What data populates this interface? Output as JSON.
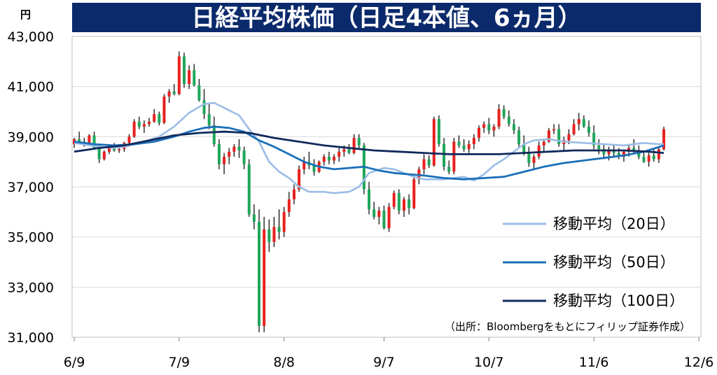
{
  "title": "日経平均株価（日足4本値、6ヵ月）",
  "unit": "円",
  "source": "（出所：Bloombergをもとにフィリップ証券作成）",
  "colors": {
    "title_bg": "#0b2a6b",
    "up": "#e8211e",
    "down": "#1fa65b",
    "ma20": "#9bbde6",
    "ma50": "#1b6fb8",
    "ma100": "#102a5c",
    "grid": "#d9d9d9"
  },
  "chart_data": {
    "type": "candlestick",
    "ylim": [
      31000,
      43000
    ],
    "yticks": [
      31000,
      33000,
      35000,
      37000,
      39000,
      41000,
      43000
    ],
    "ytick_labels": [
      "31,000",
      "33,000",
      "35,000",
      "37,000",
      "39,000",
      "41,000",
      "43,000"
    ],
    "xlim": [
      0,
      125
    ],
    "x_ticks": [
      {
        "label": "6/9",
        "i": 0
      },
      {
        "label": "7/9",
        "i": 21
      },
      {
        "label": "8/8",
        "i": 42
      },
      {
        "label": "9/7",
        "i": 62
      },
      {
        "label": "10/7",
        "i": 83
      },
      {
        "label": "11/6",
        "i": 104
      },
      {
        "label": "12/6",
        "i": 125
      }
    ],
    "grid": "horizontal",
    "legend_position": "right",
    "candles": [
      [
        0,
        38700,
        38950,
        38550,
        38900
      ],
      [
        1,
        38900,
        39200,
        38750,
        38800
      ],
      [
        2,
        38800,
        38950,
        38600,
        38750
      ],
      [
        3,
        38750,
        39100,
        38650,
        39050
      ],
      [
        4,
        39050,
        39200,
        38500,
        38550
      ],
      [
        5,
        38550,
        38700,
        37950,
        38100
      ],
      [
        6,
        38100,
        38450,
        38050,
        38400
      ],
      [
        7,
        38400,
        38700,
        38300,
        38600
      ],
      [
        8,
        38600,
        38750,
        38400,
        38450
      ],
      [
        9,
        38450,
        38550,
        38350,
        38500
      ],
      [
        10,
        38500,
        38800,
        38400,
        38750
      ],
      [
        11,
        38750,
        39100,
        38600,
        39000
      ],
      [
        12,
        39000,
        39700,
        38950,
        39600
      ],
      [
        13,
        39600,
        39800,
        39300,
        39400
      ],
      [
        14,
        39400,
        39650,
        39150,
        39500
      ],
      [
        15,
        39500,
        39750,
        39400,
        39600
      ],
      [
        16,
        39600,
        40100,
        39550,
        39900
      ],
      [
        17,
        39900,
        40000,
        39450,
        39550
      ],
      [
        18,
        39550,
        40700,
        39500,
        40600
      ],
      [
        19,
        40600,
        40900,
        40350,
        40800
      ],
      [
        20,
        40800,
        41100,
        40650,
        40700
      ],
      [
        21,
        40700,
        42400,
        40650,
        42200
      ],
      [
        22,
        42200,
        42350,
        40950,
        41100
      ],
      [
        23,
        41100,
        41850,
        40900,
        41650
      ],
      [
        24,
        41650,
        41900,
        41000,
        41050
      ],
      [
        25,
        41050,
        41300,
        40400,
        40450
      ],
      [
        26,
        40450,
        40900,
        39700,
        39900
      ],
      [
        27,
        39900,
        40300,
        39300,
        39450
      ],
      [
        28,
        39450,
        39800,
        38600,
        38700
      ],
      [
        29,
        38700,
        38900,
        37700,
        37900
      ],
      [
        30,
        37900,
        38350,
        37500,
        38200
      ],
      [
        31,
        38200,
        38550,
        37900,
        38400
      ],
      [
        32,
        38400,
        38700,
        38200,
        38600
      ],
      [
        33,
        38600,
        38900,
        38150,
        38450
      ],
      [
        34,
        38450,
        38600,
        37700,
        37900
      ],
      [
        35,
        37900,
        38100,
        35800,
        35900
      ],
      [
        36,
        35900,
        36300,
        35300,
        35600
      ],
      [
        37,
        35600,
        36100,
        31200,
        31450
      ],
      [
        38,
        31450,
        35800,
        31200,
        35300
      ],
      [
        39,
        35300,
        35700,
        34400,
        34800
      ],
      [
        40,
        34800,
        35800,
        34600,
        35400
      ],
      [
        41,
        35400,
        36100,
        34900,
        35200
      ],
      [
        42,
        35200,
        36200,
        35000,
        36000
      ],
      [
        43,
        36000,
        36800,
        35800,
        36500
      ],
      [
        44,
        36500,
        37100,
        36300,
        36900
      ],
      [
        45,
        36900,
        37850,
        36800,
        37700
      ],
      [
        46,
        37700,
        38200,
        37500,
        38000
      ],
      [
        47,
        38000,
        38400,
        37700,
        37850
      ],
      [
        48,
        37850,
        38100,
        37450,
        37600
      ],
      [
        49,
        37600,
        38050,
        37550,
        38000
      ],
      [
        50,
        38000,
        38300,
        37850,
        38200
      ],
      [
        51,
        38200,
        38400,
        37900,
        38050
      ],
      [
        52,
        38050,
        38300,
        37900,
        38200
      ],
      [
        53,
        38200,
        38550,
        38000,
        38400
      ],
      [
        54,
        38400,
        38650,
        38200,
        38500
      ],
      [
        55,
        38500,
        38700,
        38300,
        38350
      ],
      [
        56,
        38350,
        39100,
        38300,
        38950
      ],
      [
        57,
        38950,
        39100,
        38550,
        38650
      ],
      [
        58,
        38650,
        38750,
        36700,
        36900
      ],
      [
        59,
        36900,
        37200,
        35900,
        36100
      ],
      [
        60,
        36100,
        36400,
        35700,
        35800
      ],
      [
        61,
        35800,
        36200,
        35500,
        36050
      ],
      [
        62,
        36050,
        36250,
        35300,
        35350
      ],
      [
        63,
        35350,
        36350,
        35200,
        36200
      ],
      [
        64,
        36200,
        36850,
        36100,
        36750
      ],
      [
        65,
        36750,
        36900,
        35900,
        36050
      ],
      [
        66,
        36050,
        36600,
        35800,
        36500
      ],
      [
        67,
        36500,
        36700,
        35900,
        36150
      ],
      [
        68,
        36150,
        37400,
        36100,
        37300
      ],
      [
        69,
        37300,
        37800,
        37100,
        37700
      ],
      [
        70,
        37700,
        38300,
        37500,
        38100
      ],
      [
        71,
        38100,
        38250,
        37750,
        37850
      ],
      [
        72,
        37850,
        39800,
        37800,
        39700
      ],
      [
        73,
        39700,
        39850,
        38600,
        38700
      ],
      [
        74,
        38700,
        38950,
        37650,
        37800
      ],
      [
        75,
        37800,
        38050,
        37500,
        37600
      ],
      [
        76,
        37600,
        38950,
        37500,
        38800
      ],
      [
        77,
        38800,
        39050,
        38550,
        38650
      ],
      [
        78,
        38650,
        38900,
        38400,
        38500
      ],
      [
        79,
        38500,
        38850,
        38350,
        38700
      ],
      [
        80,
        38700,
        39100,
        38500,
        38950
      ],
      [
        81,
        38950,
        39450,
        38800,
        39350
      ],
      [
        82,
        39350,
        39600,
        39150,
        39500
      ],
      [
        83,
        39500,
        39750,
        39100,
        39250
      ],
      [
        84,
        39250,
        39500,
        39000,
        39400
      ],
      [
        85,
        39400,
        40300,
        39300,
        40100
      ],
      [
        86,
        40100,
        40250,
        39700,
        39800
      ],
      [
        87,
        39800,
        40050,
        39400,
        39500
      ],
      [
        88,
        39500,
        39700,
        39100,
        39250
      ],
      [
        89,
        39250,
        39400,
        38600,
        38700
      ],
      [
        90,
        38700,
        39050,
        38250,
        38350
      ],
      [
        91,
        38350,
        38600,
        37800,
        37950
      ],
      [
        92,
        37950,
        38300,
        37700,
        38200
      ],
      [
        93,
        38200,
        38800,
        38100,
        38650
      ],
      [
        94,
        38650,
        38900,
        38400,
        38800
      ],
      [
        95,
        38800,
        39350,
        38750,
        39250
      ],
      [
        96,
        39250,
        39500,
        39100,
        39300
      ],
      [
        97,
        39300,
        39500,
        38600,
        38700
      ],
      [
        98,
        38700,
        39000,
        38400,
        38850
      ],
      [
        99,
        38850,
        39300,
        38700,
        39100
      ],
      [
        100,
        39100,
        39700,
        39050,
        39500
      ],
      [
        101,
        39500,
        39950,
        39250,
        39700
      ],
      [
        102,
        39700,
        39850,
        39350,
        39400
      ],
      [
        103,
        39400,
        39650,
        39000,
        39150
      ],
      [
        104,
        39150,
        39450,
        38500,
        38650
      ],
      [
        105,
        38650,
        38900,
        38300,
        38500
      ],
      [
        106,
        38500,
        38700,
        38100,
        38300
      ],
      [
        107,
        38300,
        38600,
        38050,
        38450
      ],
      [
        108,
        38450,
        38650,
        38200,
        38350
      ],
      [
        109,
        38350,
        38550,
        38100,
        38200
      ],
      [
        110,
        38200,
        38450,
        38000,
        38400
      ],
      [
        111,
        38400,
        38700,
        38200,
        38550
      ],
      [
        112,
        38550,
        38900,
        38350,
        38450
      ],
      [
        113,
        38450,
        38650,
        38100,
        38200
      ],
      [
        114,
        38200,
        38400,
        37950,
        38000
      ],
      [
        115,
        38000,
        38350,
        37800,
        38250
      ],
      [
        116,
        38250,
        38500,
        38000,
        38100
      ],
      [
        117,
        38100,
        38600,
        37950,
        38500
      ],
      [
        118,
        38500,
        39400,
        38450,
        39300
      ]
    ],
    "series": [
      {
        "name": "移動平均（20日）",
        "points": [
          [
            0,
            38750
          ],
          [
            4,
            38620
          ],
          [
            8,
            38550
          ],
          [
            10,
            38600
          ],
          [
            14,
            38800
          ],
          [
            17,
            39000
          ],
          [
            20,
            39400
          ],
          [
            23,
            39950
          ],
          [
            26,
            40300
          ],
          [
            28,
            40350
          ],
          [
            30,
            40150
          ],
          [
            33,
            39850
          ],
          [
            35,
            39300
          ],
          [
            37,
            38800
          ],
          [
            39,
            38000
          ],
          [
            41,
            37600
          ],
          [
            43,
            37350
          ],
          [
            45,
            37000
          ],
          [
            47,
            36800
          ],
          [
            50,
            36800
          ],
          [
            52,
            36750
          ],
          [
            55,
            36800
          ],
          [
            57,
            37000
          ],
          [
            59,
            37550
          ],
          [
            62,
            37750
          ],
          [
            64,
            37700
          ],
          [
            66,
            37550
          ],
          [
            68,
            37400
          ],
          [
            70,
            37300
          ],
          [
            74,
            37300
          ],
          [
            78,
            37400
          ],
          [
            80,
            37250
          ],
          [
            82,
            37500
          ],
          [
            84,
            37850
          ],
          [
            86,
            38100
          ],
          [
            88,
            38400
          ],
          [
            90,
            38700
          ],
          [
            92,
            38850
          ],
          [
            95,
            38900
          ],
          [
            98,
            38800
          ],
          [
            102,
            38750
          ],
          [
            106,
            38700
          ],
          [
            110,
            38650
          ],
          [
            114,
            38750
          ],
          [
            117,
            38700
          ],
          [
            118,
            38700
          ]
        ]
      },
      {
        "name": "移動平均（50日）",
        "points": [
          [
            0,
            38800
          ],
          [
            4,
            38700
          ],
          [
            8,
            38650
          ],
          [
            12,
            38700
          ],
          [
            16,
            38800
          ],
          [
            20,
            39000
          ],
          [
            23,
            39200
          ],
          [
            26,
            39350
          ],
          [
            28,
            39400
          ],
          [
            31,
            39350
          ],
          [
            34,
            39200
          ],
          [
            37,
            38850
          ],
          [
            40,
            38600
          ],
          [
            43,
            38300
          ],
          [
            46,
            38000
          ],
          [
            49,
            37800
          ],
          [
            52,
            37700
          ],
          [
            55,
            37750
          ],
          [
            58,
            37800
          ],
          [
            61,
            37650
          ],
          [
            64,
            37550
          ],
          [
            67,
            37500
          ],
          [
            70,
            37450
          ],
          [
            74,
            37350
          ],
          [
            78,
            37300
          ],
          [
            82,
            37350
          ],
          [
            86,
            37400
          ],
          [
            90,
            37600
          ],
          [
            94,
            37800
          ],
          [
            98,
            37950
          ],
          [
            102,
            38050
          ],
          [
            106,
            38150
          ],
          [
            110,
            38250
          ],
          [
            114,
            38400
          ],
          [
            118,
            38650
          ]
        ]
      },
      {
        "name": "移動平均（100日）",
        "points": [
          [
            0,
            38400
          ],
          [
            5,
            38550
          ],
          [
            10,
            38650
          ],
          [
            15,
            38850
          ],
          [
            20,
            39050
          ],
          [
            25,
            39150
          ],
          [
            30,
            39200
          ],
          [
            35,
            39150
          ],
          [
            40,
            38950
          ],
          [
            45,
            38800
          ],
          [
            50,
            38650
          ],
          [
            55,
            38550
          ],
          [
            60,
            38450
          ],
          [
            65,
            38400
          ],
          [
            70,
            38350
          ],
          [
            75,
            38300
          ],
          [
            80,
            38300
          ],
          [
            85,
            38300
          ],
          [
            90,
            38350
          ],
          [
            95,
            38400
          ],
          [
            100,
            38450
          ],
          [
            105,
            38450
          ],
          [
            110,
            38450
          ],
          [
            115,
            38400
          ],
          [
            118,
            38350
          ]
        ]
      }
    ]
  }
}
